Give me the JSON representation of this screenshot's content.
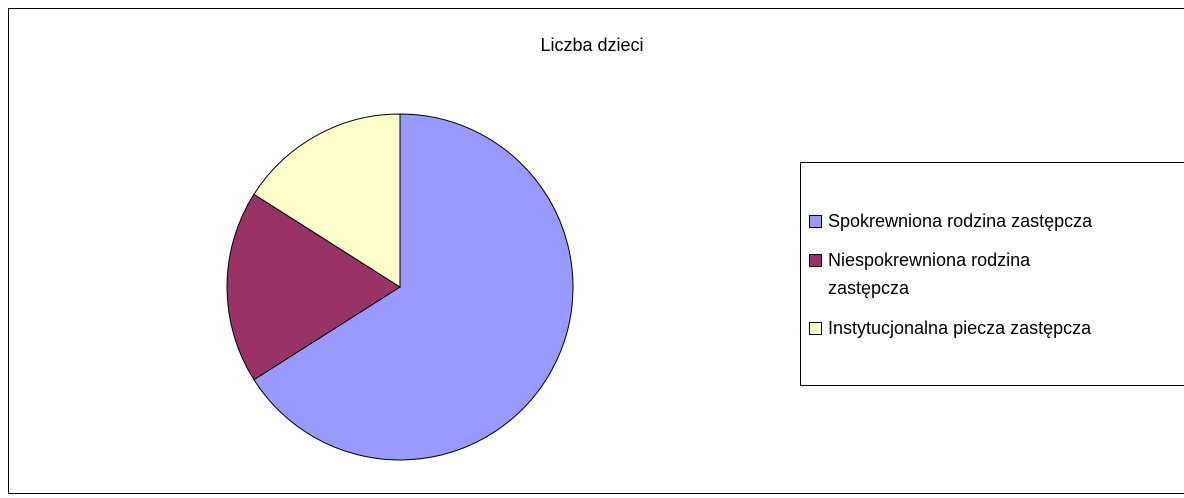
{
  "chart_data": {
    "type": "pie",
    "title": "Liczba dzieci",
    "categories": [
      "Spokrewniona rodzina zastępcza",
      "Niespokrewniona rodzina zastępcza",
      "Instytucjonalna piecza zastępcza"
    ],
    "values": [
      66,
      18,
      16
    ],
    "colors": [
      "#9999ff",
      "#993366",
      "#ffffcc"
    ],
    "legend": "right"
  }
}
